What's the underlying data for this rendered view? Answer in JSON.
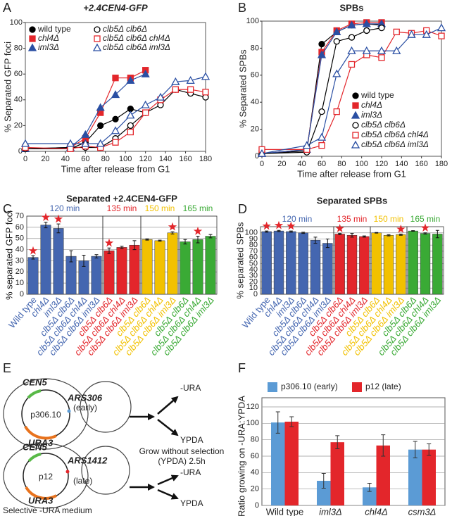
{
  "chart_data": [
    {
      "type": "line",
      "panel_label": "A",
      "title": "+2.4CEN4-GFP",
      "xlabel": "Time after release from G1",
      "ylabel": "% Separated GFP foci",
      "x": [
        0,
        45,
        60,
        75,
        90,
        105,
        120,
        135,
        150,
        165,
        180
      ],
      "xlim": [
        0,
        180
      ],
      "xticks": [
        0,
        20,
        40,
        60,
        80,
        100,
        120,
        140,
        160,
        180
      ],
      "ylim": [
        0,
        100
      ],
      "yticks": [
        0,
        20,
        40,
        60,
        80,
        100
      ],
      "legend": "upper left",
      "legend_columns": 2,
      "series": [
        {
          "name": "wild type",
          "color": "#000000",
          "marker": "circle",
          "filled": true,
          "values": [
            2,
            2,
            7,
            20,
            25,
            33,
            30,
            null,
            null,
            null,
            null
          ]
        },
        {
          "name": "chl4Δ",
          "color": "#e3262b",
          "marker": "square",
          "filled": true,
          "values": [
            2,
            3,
            10,
            30,
            57,
            57,
            63,
            null,
            null,
            null,
            null
          ]
        },
        {
          "name": "iml3Δ",
          "color": "#2a4fa3",
          "marker": "triangle",
          "filled": true,
          "values": [
            2,
            3,
            13,
            34,
            44,
            55,
            60,
            null,
            null,
            null,
            null
          ]
        },
        {
          "name": "clb5Δ clb6Δ",
          "color": "#000000",
          "marker": "circle",
          "filled": false,
          "values": [
            2,
            3,
            3,
            3,
            10,
            20,
            30,
            36,
            48,
            45,
            42
          ]
        },
        {
          "name": "clb5Δ clb6Δ chl4Δ",
          "color": "#e3262b",
          "marker": "square",
          "filled": false,
          "values": [
            3,
            2,
            4,
            3,
            7,
            15,
            30,
            40,
            48,
            48,
            46
          ]
        },
        {
          "name": "clb5Δ clb6Δ iml3Δ",
          "color": "#2a4fa3",
          "marker": "triangle",
          "filled": false,
          "values": [
            6,
            6,
            6,
            6,
            16,
            28,
            36,
            42,
            54,
            55,
            58
          ]
        }
      ]
    },
    {
      "type": "line",
      "panel_label": "B",
      "title": "SPBs",
      "xlabel": "Time after release from G1",
      "ylabel": "% Separated SPBs",
      "x": [
        0,
        45,
        60,
        75,
        90,
        105,
        120,
        135,
        150,
        165,
        180
      ],
      "xlim": [
        0,
        180
      ],
      "xticks": [
        0,
        20,
        40,
        60,
        80,
        100,
        120,
        140,
        160,
        180
      ],
      "ylim": [
        0,
        100
      ],
      "yticks": [
        0,
        20,
        40,
        60,
        80,
        100
      ],
      "legend": "lower right",
      "legend_columns": 1,
      "series": [
        {
          "name": "wild type",
          "color": "#000000",
          "marker": "circle",
          "filled": true,
          "values": [
            2,
            4,
            83,
            92,
            97,
            98,
            97,
            null,
            null,
            null,
            null
          ]
        },
        {
          "name": "chl4Δ",
          "color": "#e3262b",
          "marker": "square",
          "filled": true,
          "values": [
            2,
            5,
            77,
            93,
            98,
            99,
            99,
            null,
            null,
            null,
            null
          ]
        },
        {
          "name": "iml3Δ",
          "color": "#2a4fa3",
          "marker": "triangle",
          "filled": true,
          "values": [
            2,
            5,
            75,
            92,
            97,
            98,
            98,
            null,
            null,
            null,
            null
          ]
        },
        {
          "name": "clb5Δ clb6Δ",
          "color": "#000000",
          "marker": "circle",
          "filled": false,
          "values": [
            2,
            3,
            33,
            85,
            88,
            93,
            95,
            null,
            null,
            null,
            null
          ]
        },
        {
          "name": "clb5Δ clb6Δ chl4Δ",
          "color": "#e3262b",
          "marker": "square",
          "filled": false,
          "values": [
            5,
            5,
            8,
            33,
            68,
            75,
            73,
            92,
            91,
            93,
            89
          ]
        },
        {
          "name": "clb5Δ clb6Δ iml3Δ",
          "color": "#2a4fa3",
          "marker": "triangle",
          "filled": false,
          "values": [
            2,
            8,
            14,
            61,
            78,
            78,
            78,
            78,
            90,
            90,
            95
          ]
        }
      ]
    },
    {
      "type": "bar",
      "panel_label": "C",
      "title": "Separated +2.4CEN4-GFP",
      "ylabel": "% separated GFP foci",
      "ylim": [
        0,
        70
      ],
      "yticks": [
        0,
        10,
        20,
        30,
        40,
        50,
        60,
        70
      ],
      "grid": true,
      "groups": [
        {
          "label": "120 min",
          "color": "#4466b0",
          "categories": [
            "Wild type",
            "chl4Δ",
            "iml3Δ",
            "clb5Δ clb6Δ",
            "clb5Δ clb6Δ chl4Δ",
            "clb5Δ clb6Δ iml3Δ"
          ],
          "values": [
            33,
            62,
            59,
            34,
            30,
            34
          ],
          "errors": [
            1.5,
            2.5,
            4,
            5,
            5,
            1.5
          ],
          "significant": [
            true,
            true,
            true,
            false,
            false,
            false
          ]
        },
        {
          "label": "135 min",
          "color": "#e3262b",
          "categories": [
            "clb5Δ clb6Δ",
            "clb5Δ clb6Δ chl4Δ",
            "clb5Δ clb6Δ iml3Δ"
          ],
          "values": [
            39,
            42,
            44
          ],
          "errors": [
            2.5,
            1,
            4
          ],
          "significant": [
            true,
            false,
            false
          ]
        },
        {
          "label": "150 min",
          "color": "#f2c100",
          "categories": [
            "clb5Δ clb6Δ",
            "clb5Δ clb6Δ chl4Δ",
            "clb5Δ clb6Δ iml3Δ"
          ],
          "values": [
            49,
            48,
            55
          ],
          "errors": [
            0.5,
            0.5,
            1
          ],
          "significant": [
            false,
            false,
            true
          ]
        },
        {
          "label": "165 min",
          "color": "#3aaa35",
          "categories": [
            "clb5Δ clb6Δ",
            "clb5Δ clb6Δ chl4Δ",
            "clb5Δ clb6Δ iml3Δ"
          ],
          "values": [
            47,
            49,
            52
          ],
          "errors": [
            2,
            3,
            1.5
          ],
          "significant": [
            false,
            true,
            false
          ]
        }
      ]
    },
    {
      "type": "bar",
      "panel_label": "D",
      "title": "Separated SPBs",
      "ylabel": "% separated SPBs",
      "ylim": [
        0,
        110
      ],
      "yticks": [
        0,
        10,
        20,
        30,
        40,
        50,
        60,
        70,
        80,
        90,
        100
      ],
      "grid": true,
      "groups": [
        {
          "label": "120 min",
          "color": "#4466b0",
          "categories": [
            "Wild type",
            "chl4Δ",
            "iml3Δ",
            "clb5Δ clb6Δ",
            "clb5Δ clb6Δ chl4Δ",
            "clb5Δ clb6Δ iml3Δ"
          ],
          "values": [
            102,
            103,
            102,
            100,
            88,
            83
          ],
          "errors": [
            1,
            1,
            1,
            1,
            5,
            7
          ],
          "significant": [
            true,
            true,
            true,
            false,
            false,
            false
          ]
        },
        {
          "label": "135 min",
          "color": "#e3262b",
          "categories": [
            "clb5Δ clb6Δ",
            "clb5Δ clb6Δ chl4Δ",
            "clb5Δ clb6Δ iml3Δ"
          ],
          "values": [
            98,
            96,
            94
          ],
          "errors": [
            1,
            3,
            1
          ],
          "significant": [
            true,
            false,
            false
          ]
        },
        {
          "label": "150 min",
          "color": "#f2c100",
          "categories": [
            "clb5Δ clb6Δ",
            "clb5Δ clb6Δ chl4Δ",
            "clb5Δ clb6Δ iml3Δ"
          ],
          "values": [
            100,
            96,
            97
          ],
          "errors": [
            0.5,
            1,
            1
          ],
          "significant": [
            false,
            false,
            true
          ]
        },
        {
          "label": "165 min",
          "color": "#3aaa35",
          "categories": [
            "clb5Δ clb6Δ",
            "clb5Δ clb6Δ chl4Δ",
            "clb5Δ clb6Δ iml3Δ"
          ],
          "values": [
            103,
            99,
            98
          ],
          "errors": [
            0.5,
            1,
            6
          ],
          "significant": [
            false,
            true,
            false
          ]
        }
      ]
    },
    {
      "type": "grouped_bar",
      "panel_label": "F",
      "ylabel": "Ratio growing on -URA:YPDA",
      "categories": [
        "Wild type",
        "iml3Δ",
        "chl4Δ",
        "csm3Δ"
      ],
      "ylim": [
        0,
        120
      ],
      "yticks": [
        0,
        20,
        40,
        60,
        80,
        100,
        120
      ],
      "grid": true,
      "legend": "top",
      "series": [
        {
          "name": "p306.10 (early)",
          "color": "#5b9bd5",
          "values": [
            101,
            30,
            22,
            68
          ],
          "errors": [
            13,
            9,
            5,
            10
          ]
        },
        {
          "name": "p12 (late)",
          "color": "#e3262b",
          "values": [
            102,
            77,
            73,
            68
          ],
          "errors": [
            6,
            8,
            13,
            7
          ]
        }
      ]
    }
  ],
  "diagram": {
    "panel_label": "E",
    "top": {
      "centromere": "CEN5",
      "plasmid": "p306.10",
      "origin": "ARS306",
      "timing": "(early)",
      "marker": "URA3"
    },
    "bottom": {
      "centromere": "CEN5",
      "plasmid": "p12",
      "origin": "ARS1412",
      "timing": "(late)",
      "marker": "URA3"
    },
    "step": [
      "Grow without selection",
      "(YPDA) 2.5h"
    ],
    "outcomes": [
      "-URA",
      "YPDA",
      "-URA",
      "YPDA"
    ],
    "medium": "Selective -URA medium"
  }
}
